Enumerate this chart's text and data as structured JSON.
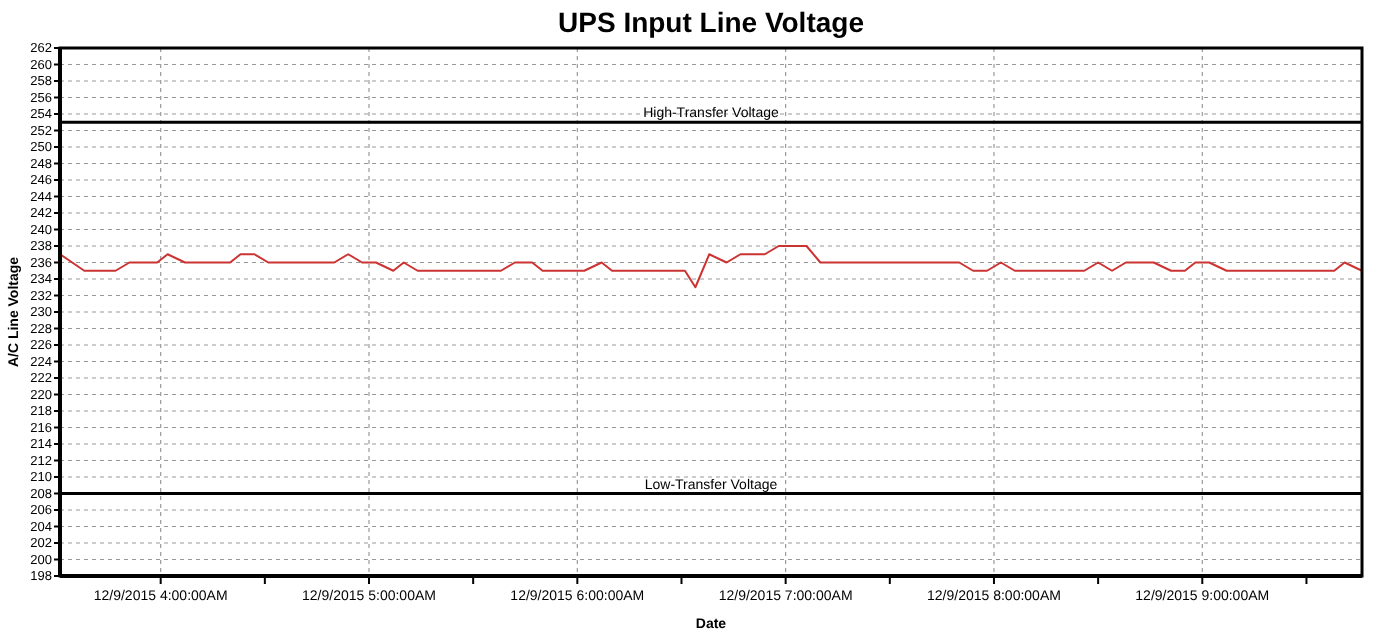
{
  "chart_data": {
    "type": "line",
    "title": "UPS Input Line Voltage",
    "xlabel": "Date",
    "ylabel": "A/C Line Voltage",
    "x": [
      "2015-12-09T03:31",
      "2015-12-09T03:38",
      "2015-12-09T03:47",
      "2015-12-09T03:51",
      "2015-12-09T03:59",
      "2015-12-09T04:02",
      "2015-12-09T04:07",
      "2015-12-09T04:20",
      "2015-12-09T04:23",
      "2015-12-09T04:27",
      "2015-12-09T04:31",
      "2015-12-09T04:50",
      "2015-12-09T04:54",
      "2015-12-09T04:58",
      "2015-12-09T05:02",
      "2015-12-09T05:07",
      "2015-12-09T05:10",
      "2015-12-09T05:14",
      "2015-12-09T05:38",
      "2015-12-09T05:42",
      "2015-12-09T05:47",
      "2015-12-09T05:50",
      "2015-12-09T06:02",
      "2015-12-09T06:07",
      "2015-12-09T06:10",
      "2015-12-09T06:31",
      "2015-12-09T06:34",
      "2015-12-09T06:38",
      "2015-12-09T06:43",
      "2015-12-09T06:47",
      "2015-12-09T06:54",
      "2015-12-09T06:58",
      "2015-12-09T07:06",
      "2015-12-09T07:10",
      "2015-12-09T07:50",
      "2015-12-09T07:54",
      "2015-12-09T07:58",
      "2015-12-09T08:02",
      "2015-12-09T08:06",
      "2015-12-09T08:26",
      "2015-12-09T08:30",
      "2015-12-09T08:34",
      "2015-12-09T08:38",
      "2015-12-09T08:46",
      "2015-12-09T08:51",
      "2015-12-09T08:55",
      "2015-12-09T08:58",
      "2015-12-09T09:02",
      "2015-12-09T09:07",
      "2015-12-09T09:38",
      "2015-12-09T09:41",
      "2015-12-09T09:46"
    ],
    "series": [
      {
        "color": "#cc3333",
        "values": [
          237,
          235,
          235,
          236,
          236,
          237,
          236,
          236,
          237,
          237,
          236,
          236,
          237,
          236,
          236,
          235,
          236,
          235,
          235,
          236,
          236,
          235,
          235,
          236,
          235,
          235,
          233,
          237,
          236,
          237,
          237,
          238,
          238,
          236,
          236,
          235,
          235,
          236,
          235,
          235,
          236,
          235,
          236,
          236,
          235,
          235,
          236,
          236,
          235,
          235,
          236,
          235
        ]
      }
    ],
    "xlim": [
      "2015-12-09T03:31",
      "2015-12-09T09:46"
    ],
    "xticks": [
      {
        "value": "2015-12-09T04:00",
        "label": "12/9/2015 4:00:00AM"
      },
      {
        "value": "2015-12-09T04:30",
        "label": null
      },
      {
        "value": "2015-12-09T05:00",
        "label": "12/9/2015 5:00:00AM"
      },
      {
        "value": "2015-12-09T05:30",
        "label": null
      },
      {
        "value": "2015-12-09T06:00",
        "label": "12/9/2015 6:00:00AM"
      },
      {
        "value": "2015-12-09T06:30",
        "label": null
      },
      {
        "value": "2015-12-09T07:00",
        "label": "12/9/2015 7:00:00AM"
      },
      {
        "value": "2015-12-09T07:30",
        "label": null
      },
      {
        "value": "2015-12-09T08:00",
        "label": "12/9/2015 8:00:00AM"
      },
      {
        "value": "2015-12-09T08:30",
        "label": null
      },
      {
        "value": "2015-12-09T09:00",
        "label": "12/9/2015 9:00:00AM"
      },
      {
        "value": "2015-12-09T09:30",
        "label": null
      }
    ],
    "ylim": [
      198,
      262
    ],
    "yticks": [
      198,
      200,
      202,
      204,
      206,
      208,
      210,
      212,
      214,
      216,
      218,
      220,
      222,
      224,
      226,
      228,
      230,
      232,
      234,
      236,
      238,
      240,
      242,
      244,
      246,
      248,
      250,
      252,
      254,
      256,
      258,
      260,
      262
    ],
    "ref_lines": [
      {
        "axis": "y",
        "value": 253,
        "label": "High-Transfer Voltage",
        "color": "#000000"
      },
      {
        "axis": "y",
        "value": 208,
        "label": "Low-Transfer Voltage",
        "color": "#000000"
      }
    ],
    "grid": true,
    "marker": "none",
    "line_style": "solid"
  }
}
